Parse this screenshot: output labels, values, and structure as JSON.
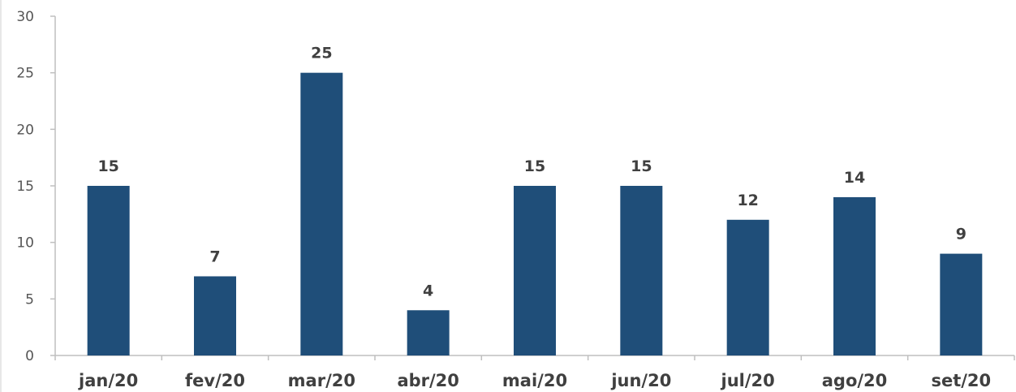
{
  "chart_data": {
    "type": "bar",
    "categories": [
      "jan/20",
      "fev/20",
      "mar/20",
      "abr/20",
      "mai/20",
      "jun/20",
      "jul/20",
      "ago/20",
      "set/20"
    ],
    "values": [
      15,
      7,
      25,
      4,
      15,
      15,
      12,
      14,
      9
    ],
    "data_labels": [
      "15",
      "7",
      "25",
      "4",
      "15",
      "15",
      "12",
      "14",
      "9"
    ],
    "yticks": [
      "0",
      "5",
      "10",
      "15",
      "20",
      "25",
      "30"
    ],
    "ylim": [
      0,
      30
    ],
    "title": "",
    "xlabel": "",
    "ylabel": "",
    "grid": false,
    "bar_color": "#1f4e79",
    "label_color": "#404040"
  }
}
